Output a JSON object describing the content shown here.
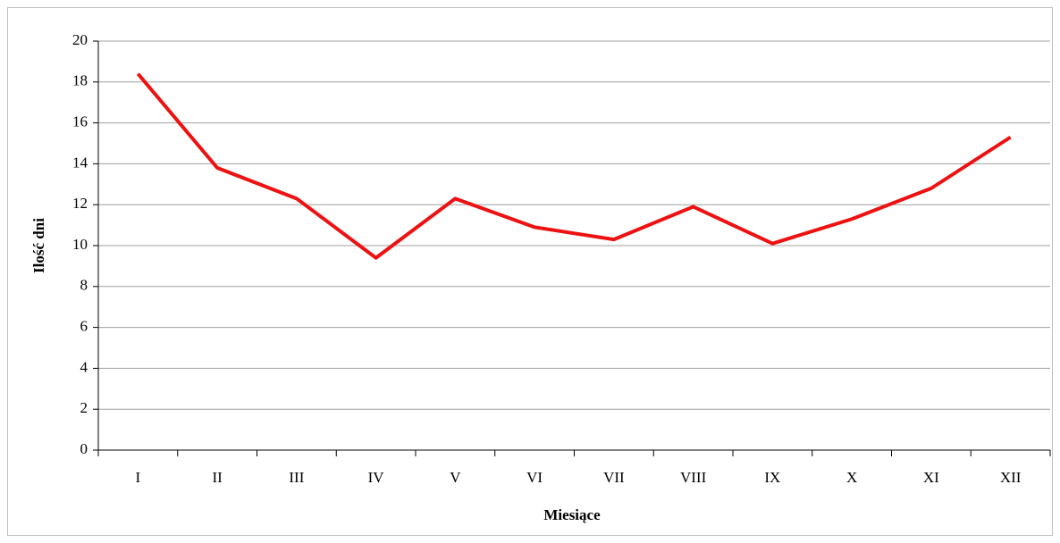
{
  "chart_data": {
    "type": "line",
    "x_label": "Miesiące",
    "y_label": "Ilość dni",
    "categories": [
      "I",
      "II",
      "III",
      "IV",
      "V",
      "VI",
      "VII",
      "VIII",
      "IX",
      "X",
      "XI",
      "XII"
    ],
    "values": [
      18.4,
      13.8,
      12.3,
      9.4,
      12.3,
      10.9,
      10.3,
      11.9,
      10.1,
      11.3,
      12.8,
      15.3
    ],
    "color": "#ee1111",
    "ylim": [
      0,
      20
    ],
    "yticks": [
      0,
      2,
      4,
      6,
      8,
      10,
      12,
      14,
      16,
      18,
      20
    ],
    "grid": true
  }
}
